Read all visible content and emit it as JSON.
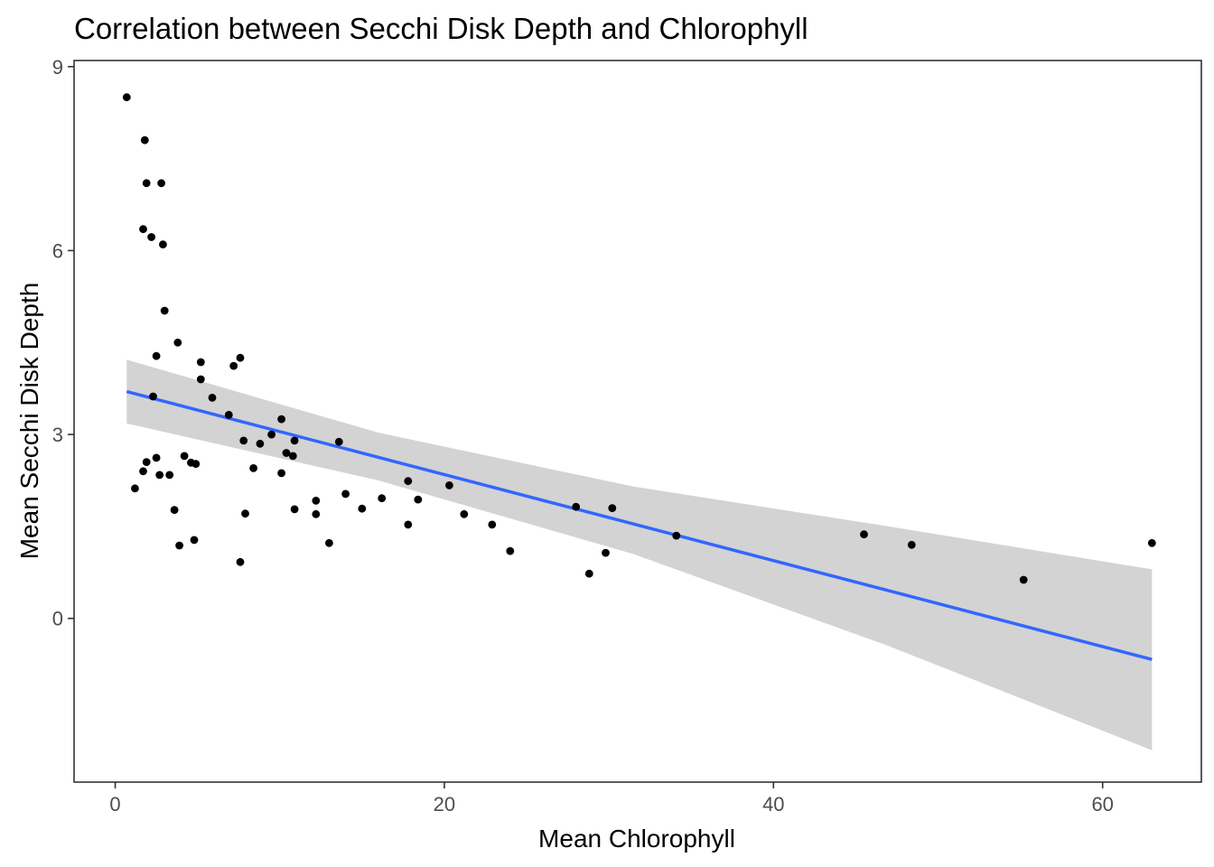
{
  "chart_data": {
    "type": "scatter",
    "title": "Correlation between Secchi Disk Depth and Chlorophyll",
    "xlabel": "Mean Chlorophyll",
    "ylabel": "Mean Secchi Disk Depth",
    "xlim": [
      -2.5,
      66.0
    ],
    "ylim": [
      -2.67,
      9.1
    ],
    "x_ticks": [
      0,
      20,
      40,
      60
    ],
    "y_ticks": [
      0,
      3,
      6,
      9
    ],
    "x_tick_labels": [
      "0",
      "20",
      "40",
      "60"
    ],
    "y_tick_labels": [
      "0",
      "3",
      "6",
      "9"
    ],
    "grid": false,
    "legend": "none",
    "colors": {
      "points": "#000000",
      "fit_line": "#3366ff",
      "band": "#d3d3d3",
      "panel_border": "#333333"
    },
    "points": [
      [
        0.7,
        8.5
      ],
      [
        1.8,
        7.8
      ],
      [
        1.9,
        7.1
      ],
      [
        2.8,
        7.1
      ],
      [
        1.7,
        6.35
      ],
      [
        2.2,
        6.22
      ],
      [
        2.9,
        6.1
      ],
      [
        3.0,
        5.02
      ],
      [
        3.8,
        4.5
      ],
      [
        2.5,
        4.28
      ],
      [
        7.6,
        4.25
      ],
      [
        5.2,
        4.18
      ],
      [
        7.2,
        4.12
      ],
      [
        5.2,
        3.9
      ],
      [
        2.3,
        3.62
      ],
      [
        5.9,
        3.6
      ],
      [
        6.9,
        3.32
      ],
      [
        10.1,
        3.25
      ],
      [
        9.5,
        3.0
      ],
      [
        10.9,
        2.9
      ],
      [
        7.8,
        2.9
      ],
      [
        13.6,
        2.88
      ],
      [
        8.8,
        2.85
      ],
      [
        10.4,
        2.7
      ],
      [
        10.8,
        2.65
      ],
      [
        4.2,
        2.65
      ],
      [
        2.5,
        2.62
      ],
      [
        4.6,
        2.54
      ],
      [
        4.9,
        2.52
      ],
      [
        1.9,
        2.55
      ],
      [
        8.4,
        2.45
      ],
      [
        1.7,
        2.4
      ],
      [
        10.1,
        2.37
      ],
      [
        3.3,
        2.34
      ],
      [
        2.7,
        2.34
      ],
      [
        17.8,
        2.24
      ],
      [
        20.3,
        2.17
      ],
      [
        1.2,
        2.12
      ],
      [
        14.0,
        2.03
      ],
      [
        16.2,
        1.96
      ],
      [
        18.4,
        1.94
      ],
      [
        12.2,
        1.92
      ],
      [
        15.0,
        1.79
      ],
      [
        3.6,
        1.77
      ],
      [
        10.9,
        1.78
      ],
      [
        30.2,
        1.8
      ],
      [
        28.0,
        1.82
      ],
      [
        7.9,
        1.71
      ],
      [
        12.2,
        1.7
      ],
      [
        21.2,
        1.7
      ],
      [
        17.8,
        1.53
      ],
      [
        22.9,
        1.53
      ],
      [
        34.1,
        1.35
      ],
      [
        45.5,
        1.37
      ],
      [
        48.4,
        1.2
      ],
      [
        4.8,
        1.28
      ],
      [
        13.0,
        1.23
      ],
      [
        3.9,
        1.19
      ],
      [
        63.0,
        1.23
      ],
      [
        24.0,
        1.1
      ],
      [
        29.8,
        1.07
      ],
      [
        7.6,
        0.92
      ],
      [
        28.8,
        0.73
      ],
      [
        55.2,
        0.63
      ]
    ],
    "fit_line": {
      "x": [
        0.7,
        63.0
      ],
      "y": [
        3.7,
        -0.67
      ]
    },
    "confidence_band": {
      "x": [
        0.7,
        16.0,
        31.5,
        47.0,
        63.0
      ],
      "upper": [
        4.22,
        3.03,
        2.15,
        1.5,
        0.8
      ],
      "lower": [
        3.18,
        2.25,
        1.05,
        -0.45,
        -2.15
      ]
    }
  }
}
